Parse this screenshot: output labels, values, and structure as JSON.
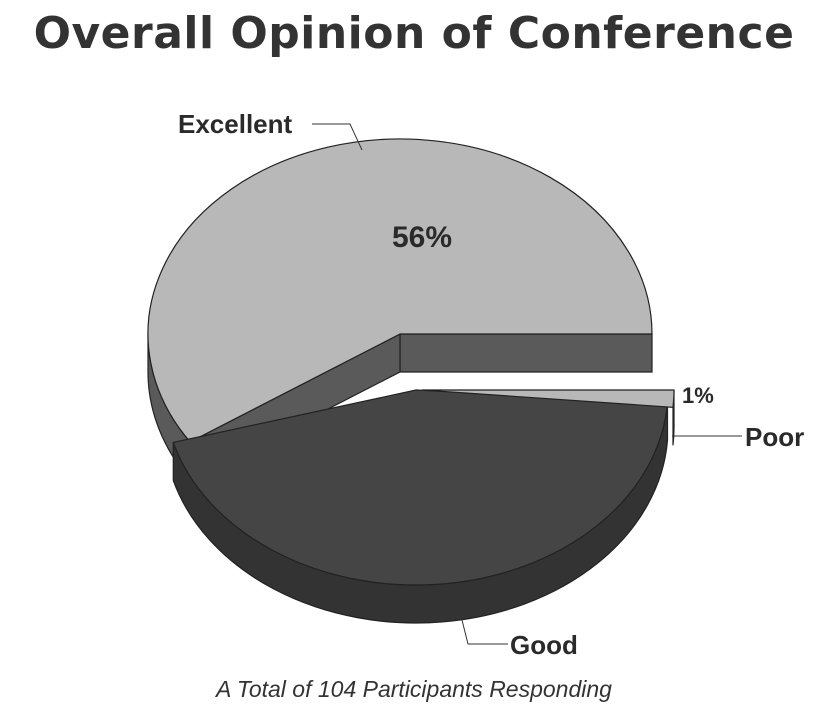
{
  "chart_data": {
    "type": "pie",
    "title": "Overall Opinion of Conference",
    "subtitle": "A Total of 104 Participants Responding",
    "categories": [
      "Excellent",
      "Good",
      "Poor"
    ],
    "values": [
      56,
      43,
      1
    ],
    "value_labels": [
      "56%",
      "",
      "1%"
    ],
    "legend": "none",
    "colors": {
      "Excellent": "#b8b8b8",
      "Good": "#454545",
      "Poor": "#b8b8b8",
      "depth": "#5a5a5a",
      "outline": "#222222"
    }
  }
}
